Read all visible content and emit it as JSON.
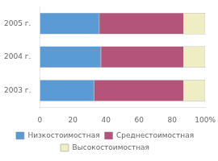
{
  "chart_data": {
    "type": "bar",
    "orientation": "horizontal",
    "stacked": true,
    "categories": [
      "2005 г.",
      "2004 г.",
      "2003 г."
    ],
    "series": [
      {
        "name": "Низкостоимостная",
        "color": "#5b9bd5",
        "values": [
          36,
          37,
          33
        ]
      },
      {
        "name": "Среднестоимостная",
        "color": "#b5547a",
        "values": [
          51,
          50,
          54
        ]
      },
      {
        "name": "Высокостоимостная",
        "color": "#eeedc4",
        "values": [
          13,
          13,
          13
        ]
      }
    ],
    "xlim": [
      0,
      100
    ],
    "xticks": [
      0,
      20,
      40,
      60,
      80,
      {
        "value": 100,
        "label": "100%"
      }
    ],
    "grid": false,
    "legend": "bottom"
  }
}
